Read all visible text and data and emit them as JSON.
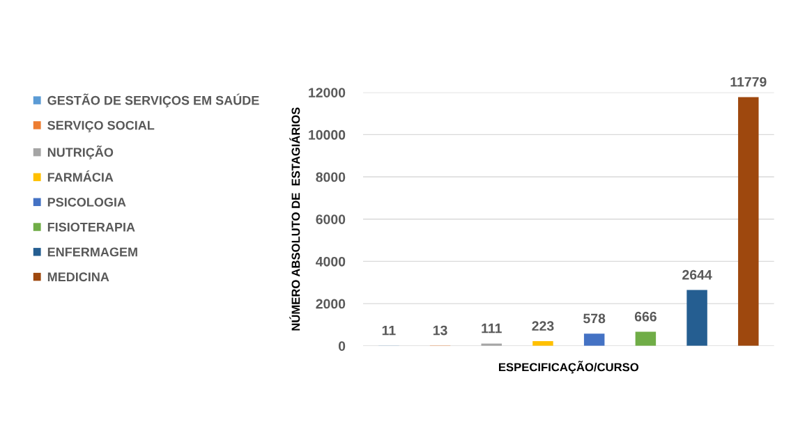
{
  "chart_data": {
    "type": "bar",
    "xlabel": "ESPECIFICAÇÃO/CURSO",
    "ylabel": "NÚMERO ABSOLUTO DE  ESTAGIÁRIOS",
    "categories": [
      null,
      null,
      null,
      null,
      null,
      null,
      null,
      null
    ],
    "series": [
      {
        "name": "GESTÃO DE SERVIÇOS EM SAÚDE",
        "color": "#5b9bd5",
        "values": [
          11,
          null,
          null,
          null,
          null,
          null,
          null,
          null
        ]
      },
      {
        "name": "SERVIÇO SOCIAL",
        "color": "#ed7d31",
        "values": [
          null,
          13,
          null,
          null,
          null,
          null,
          null,
          null
        ]
      },
      {
        "name": "NUTRIÇÃO",
        "color": "#a5a5a5",
        "values": [
          null,
          null,
          111,
          null,
          null,
          null,
          null,
          null
        ]
      },
      {
        "name": "FARMÁCIA",
        "color": "#ffc000",
        "values": [
          null,
          null,
          null,
          223,
          null,
          null,
          null,
          null
        ]
      },
      {
        "name": "PSICOLOGIA",
        "color": "#4472c4",
        "values": [
          null,
          null,
          null,
          null,
          578,
          null,
          null,
          null
        ]
      },
      {
        "name": "FISIOTERAPIA",
        "color": "#70ad47",
        "values": [
          null,
          null,
          null,
          null,
          null,
          666,
          null,
          null
        ]
      },
      {
        "name": "ENFERMAGEM",
        "color": "#255e91",
        "values": [
          null,
          null,
          null,
          null,
          null,
          null,
          2644,
          null
        ]
      },
      {
        "name": "MEDICINA",
        "color": "#9e480e",
        "values": [
          null,
          null,
          null,
          null,
          null,
          null,
          null,
          11779
        ]
      }
    ],
    "ylim": [
      0,
      12000
    ],
    "yticks": [
      0,
      2000,
      4000,
      6000,
      8000,
      10000,
      12000
    ],
    "grid": "y",
    "legend": "left",
    "data_labels": true
  }
}
